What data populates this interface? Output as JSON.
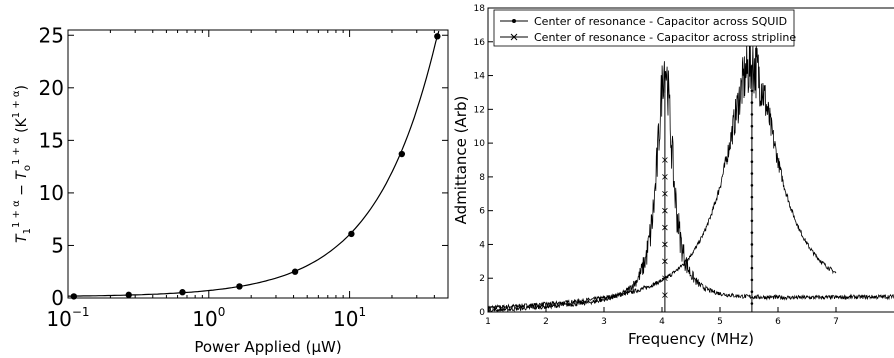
{
  "chart_data": [
    {
      "type": "scatter",
      "xscale": "log",
      "xlabel": "Power Applied (μW)",
      "ylabel_parts": {
        "t1": "T",
        "sub1": "1",
        "sup1": "1 + α",
        "minus": " − ",
        "t2": "T",
        "sub2": "o",
        "sup2": "1 + α",
        "unit_open": " (K",
        "sup3": "1 + α",
        "unit_close": ")"
      },
      "xlim": [
        0.1,
        50
      ],
      "ylim": [
        0,
        25.5
      ],
      "x_ticks": [
        {
          "value": 0.1,
          "base": "10",
          "exp": "−1"
        },
        {
          "value": 1,
          "base": "10",
          "exp": "0"
        },
        {
          "value": 10,
          "base": "10",
          "exp": "1"
        }
      ],
      "y_ticks": [
        {
          "value": 0,
          "label": "0"
        },
        {
          "value": 5,
          "label": "5"
        },
        {
          "value": 10,
          "label": "10"
        },
        {
          "value": 15,
          "label": "15"
        },
        {
          "value": 20,
          "label": "20"
        },
        {
          "value": 25,
          "label": "25"
        }
      ],
      "points": [
        {
          "x": 0.11,
          "y": 0.15
        },
        {
          "x": 0.27,
          "y": 0.3
        },
        {
          "x": 0.65,
          "y": 0.55
        },
        {
          "x": 1.65,
          "y": 1.1
        },
        {
          "x": 4.1,
          "y": 2.5
        },
        {
          "x": 10.3,
          "y": 6.1
        },
        {
          "x": 23.5,
          "y": 13.7
        },
        {
          "x": 42.0,
          "y": 24.9
        }
      ],
      "fit_line": true,
      "grid": false
    },
    {
      "type": "line",
      "xlabel": "Frequency (MHz)",
      "ylabel": "Admittance (Arb)",
      "xlim": [
        1,
        8
      ],
      "ylim": [
        0,
        18
      ],
      "x_ticks": [
        "1",
        "2",
        "3",
        "4",
        "5",
        "6",
        "7"
      ],
      "y_ticks": [
        "0",
        "2",
        "4",
        "6",
        "8",
        "10",
        "12",
        "14",
        "16",
        "18"
      ],
      "legend_position": "top-left",
      "series": [
        {
          "name": "Center of resonance - Capacitor across SQUID",
          "marker": "dot",
          "center_mhz": 5.55,
          "peak": 14.2,
          "x_range": [
            1,
            7
          ],
          "vertical_line_x": 5.55
        },
        {
          "name": "Center of resonance - Capacitor across stripline",
          "marker": "x",
          "center_mhz": 4.05,
          "peak": 14.0,
          "x_range": [
            1,
            8
          ],
          "vertical_line_x": 4.05
        }
      ],
      "grid": false
    }
  ]
}
